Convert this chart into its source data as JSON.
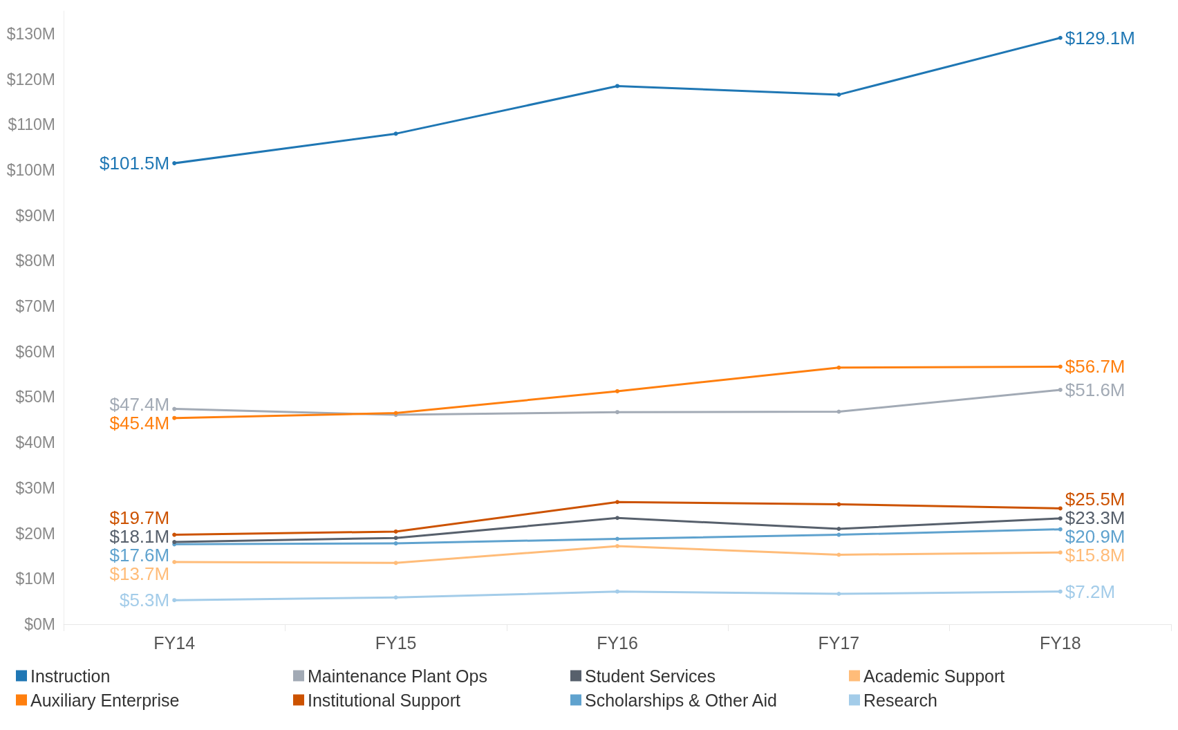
{
  "chart_data": {
    "type": "line",
    "categories": [
      "FY14",
      "FY15",
      "FY16",
      "FY17",
      "FY18"
    ],
    "ylim": [
      0,
      135
    ],
    "yticks": [
      {
        "value": 0,
        "label": "$0M"
      },
      {
        "value": 10,
        "label": "$10M"
      },
      {
        "value": 20,
        "label": "$20M"
      },
      {
        "value": 30,
        "label": "$30M"
      },
      {
        "value": 40,
        "label": "$40M"
      },
      {
        "value": 50,
        "label": "$50M"
      },
      {
        "value": 60,
        "label": "$60M"
      },
      {
        "value": 70,
        "label": "$70M"
      },
      {
        "value": 80,
        "label": "$80M"
      },
      {
        "value": 90,
        "label": "$90M"
      },
      {
        "value": 100,
        "label": "$100M"
      },
      {
        "value": 110,
        "label": "$110M"
      },
      {
        "value": 120,
        "label": "$120M"
      },
      {
        "value": 130,
        "label": "$130M"
      }
    ],
    "series": [
      {
        "name": "Instruction",
        "color": "#1f77b4",
        "values": [
          101.5,
          108.0,
          118.5,
          116.6,
          129.1
        ],
        "value_labels": [
          "$101.5M",
          null,
          null,
          null,
          "$129.1M"
        ]
      },
      {
        "name": "Auxiliary Enterprise",
        "color": "#ff7f0e",
        "values": [
          45.4,
          46.5,
          51.3,
          56.5,
          56.7
        ],
        "value_labels": [
          "$45.4M",
          null,
          null,
          null,
          "$56.7M"
        ]
      },
      {
        "name": "Maintenance Plant Ops",
        "color": "#a2aab5",
        "values": [
          47.4,
          46.1,
          46.7,
          46.8,
          51.6
        ],
        "value_labels": [
          "$47.4M",
          null,
          null,
          null,
          "$51.6M"
        ]
      },
      {
        "name": "Institutional Support",
        "color": "#cc5200",
        "values": [
          19.7,
          20.4,
          26.9,
          26.4,
          25.5
        ],
        "value_labels": [
          "$19.7M",
          null,
          null,
          null,
          "$25.5M"
        ]
      },
      {
        "name": "Student Services",
        "color": "#57606c",
        "values": [
          18.1,
          19.0,
          23.4,
          21.0,
          23.3
        ],
        "value_labels": [
          "$18.1M",
          null,
          null,
          null,
          "$23.3M"
        ]
      },
      {
        "name": "Scholarships & Other Aid",
        "color": "#5fa2ce",
        "values": [
          17.6,
          17.8,
          18.8,
          19.7,
          20.9
        ],
        "value_labels": [
          "$17.6M",
          null,
          null,
          null,
          "$20.9M"
        ]
      },
      {
        "name": "Academic Support",
        "color": "#ffbc79",
        "values": [
          13.7,
          13.5,
          17.2,
          15.3,
          15.8
        ],
        "value_labels": [
          "$13.7M",
          null,
          null,
          null,
          "$15.8M"
        ]
      },
      {
        "name": "Research",
        "color": "#a3cce9",
        "values": [
          5.3,
          5.9,
          7.2,
          6.7,
          7.2
        ],
        "value_labels": [
          "$5.3M",
          null,
          null,
          null,
          "$7.2M"
        ]
      }
    ],
    "legend": "bottom",
    "grid": false,
    "marker": "circle",
    "line_style": "solid"
  }
}
